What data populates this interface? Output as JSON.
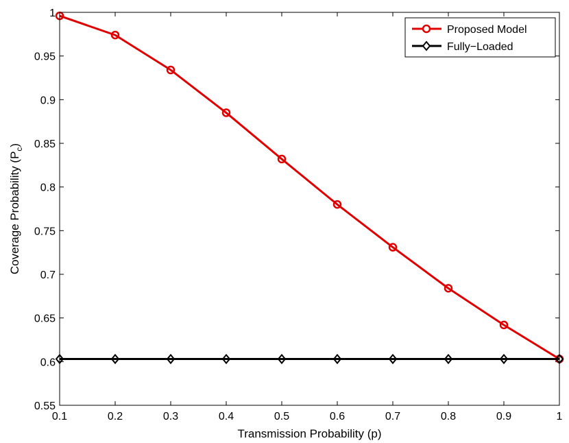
{
  "chart_data": {
    "type": "line",
    "xlabel": "Transmission Probability (p)",
    "ylabel": "Coverage Probability (P",
    "ylabel_subscript": "c",
    "ylabel_suffix": ")",
    "xlim": [
      0.1,
      1
    ],
    "ylim": [
      0.55,
      1
    ],
    "x_ticks": [
      "0.1",
      "0.2",
      "0.3",
      "0.4",
      "0.5",
      "0.6",
      "0.7",
      "0.8",
      "0.9",
      "1"
    ],
    "y_ticks": [
      "0.55",
      "0.6",
      "0.65",
      "0.7",
      "0.75",
      "0.8",
      "0.85",
      "0.9",
      "0.95",
      "1"
    ],
    "x": [
      0.1,
      0.2,
      0.3,
      0.4,
      0.5,
      0.6,
      0.7,
      0.8,
      0.9,
      1.0
    ],
    "grid": false,
    "legend_position": "top-right",
    "series": [
      {
        "name": "Proposed Model",
        "color": "#e00000",
        "marker": "circle",
        "values": [
          0.996,
          0.974,
          0.934,
          0.885,
          0.832,
          0.78,
          0.731,
          0.684,
          0.642,
          0.603
        ]
      },
      {
        "name": "Fully−Loaded",
        "color": "#000000",
        "marker": "diamond",
        "values": [
          0.603,
          0.603,
          0.603,
          0.603,
          0.603,
          0.603,
          0.603,
          0.603,
          0.603,
          0.603
        ]
      }
    ]
  }
}
